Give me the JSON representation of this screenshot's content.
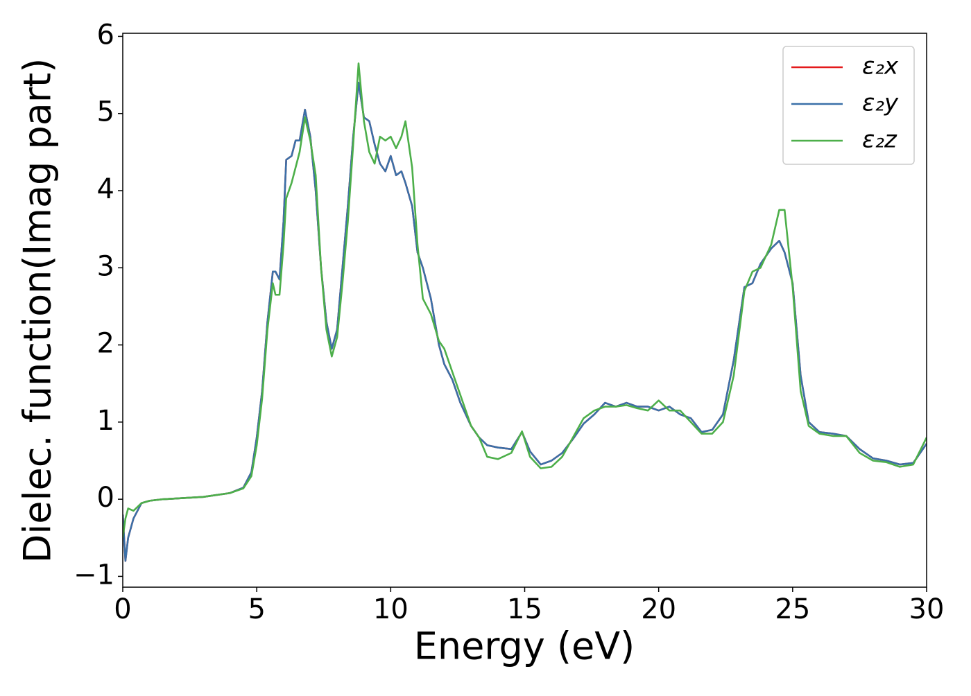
{
  "chart_data": {
    "type": "line",
    "xlabel": "Energy (eV)",
    "ylabel": "Dielec. function(Imag part)",
    "x": [
      0,
      0.1,
      0.2,
      0.4,
      0.7,
      1,
      1.5,
      2,
      3,
      4,
      4.5,
      4.8,
      5,
      5.2,
      5.4,
      5.6,
      5.7,
      5.85,
      6,
      6.1,
      6.3,
      6.45,
      6.6,
      6.8,
      7,
      7.2,
      7.4,
      7.6,
      7.8,
      8,
      8.2,
      8.4,
      8.6,
      8.8,
      9,
      9.2,
      9.4,
      9.6,
      9.8,
      10,
      10.2,
      10.4,
      10.55,
      10.8,
      11,
      11.2,
      11.5,
      11.8,
      12,
      12.3,
      12.6,
      13,
      13.3,
      13.6,
      14,
      14.5,
      14.9,
      15.2,
      15.6,
      16,
      16.4,
      16.8,
      17.2,
      17.6,
      18,
      18.4,
      18.8,
      19.2,
      19.6,
      20,
      20.4,
      20.8,
      21.2,
      21.6,
      22,
      22.4,
      22.8,
      23.2,
      23.5,
      23.8,
      24.2,
      24.5,
      24.7,
      25,
      25.3,
      25.6,
      26,
      26.5,
      27,
      27.5,
      28,
      28.5,
      29,
      29.5,
      30
    ],
    "series": [
      {
        "name": "ε₂x",
        "color": "#e41a1c",
        "values": [
          -0.2,
          -0.8,
          -0.5,
          -0.25,
          -0.05,
          -0.02,
          0,
          0.01,
          0.03,
          0.08,
          0.15,
          0.35,
          0.8,
          1.4,
          2.3,
          2.95,
          2.95,
          2.85,
          3.6,
          4.4,
          4.45,
          4.65,
          4.65,
          5.05,
          4.7,
          4.0,
          3.0,
          2.3,
          1.95,
          2.2,
          3.0,
          3.8,
          4.7,
          5.4,
          4.95,
          4.9,
          4.6,
          4.35,
          4.25,
          4.45,
          4.2,
          4.25,
          4.1,
          3.8,
          3.2,
          3.0,
          2.6,
          2.0,
          1.75,
          1.55,
          1.25,
          0.95,
          0.8,
          0.7,
          0.67,
          0.65,
          0.87,
          0.62,
          0.45,
          0.5,
          0.6,
          0.78,
          0.98,
          1.1,
          1.25,
          1.2,
          1.25,
          1.2,
          1.2,
          1.15,
          1.2,
          1.1,
          1.05,
          0.87,
          0.9,
          1.1,
          1.8,
          2.75,
          2.8,
          3.05,
          3.25,
          3.35,
          3.2,
          2.8,
          1.6,
          1.0,
          0.87,
          0.85,
          0.82,
          0.65,
          0.53,
          0.5,
          0.45,
          0.47,
          0.72
        ]
      },
      {
        "name": "ε₂y",
        "color": "#3a70a8",
        "values": [
          -0.2,
          -0.8,
          -0.5,
          -0.25,
          -0.05,
          -0.02,
          0,
          0.01,
          0.03,
          0.08,
          0.15,
          0.35,
          0.8,
          1.4,
          2.3,
          2.95,
          2.95,
          2.85,
          3.6,
          4.4,
          4.45,
          4.65,
          4.65,
          5.05,
          4.7,
          4.0,
          3.0,
          2.3,
          1.95,
          2.2,
          3.0,
          3.8,
          4.7,
          5.4,
          4.95,
          4.9,
          4.6,
          4.35,
          4.25,
          4.45,
          4.2,
          4.25,
          4.1,
          3.8,
          3.2,
          3.0,
          2.6,
          2.0,
          1.75,
          1.55,
          1.25,
          0.95,
          0.8,
          0.7,
          0.67,
          0.65,
          0.87,
          0.62,
          0.45,
          0.5,
          0.6,
          0.78,
          0.98,
          1.1,
          1.25,
          1.2,
          1.25,
          1.2,
          1.2,
          1.15,
          1.2,
          1.1,
          1.05,
          0.87,
          0.9,
          1.1,
          1.8,
          2.75,
          2.8,
          3.05,
          3.25,
          3.35,
          3.2,
          2.8,
          1.6,
          1.0,
          0.87,
          0.85,
          0.82,
          0.65,
          0.53,
          0.5,
          0.45,
          0.47,
          0.72
        ]
      },
      {
        "name": "ε₂z",
        "color": "#4daf4a",
        "values": [
          -0.5,
          -0.25,
          -0.12,
          -0.15,
          -0.05,
          -0.02,
          0,
          0.01,
          0.03,
          0.08,
          0.14,
          0.3,
          0.7,
          1.3,
          2.2,
          2.8,
          2.65,
          2.65,
          3.3,
          3.9,
          4.1,
          4.3,
          4.5,
          4.95,
          4.65,
          4.2,
          3.0,
          2.2,
          1.85,
          2.1,
          2.8,
          3.6,
          4.6,
          5.65,
          4.9,
          4.5,
          4.35,
          4.7,
          4.65,
          4.7,
          4.55,
          4.7,
          4.9,
          4.3,
          3.3,
          2.6,
          2.4,
          2.05,
          1.95,
          1.65,
          1.35,
          0.95,
          0.8,
          0.55,
          0.52,
          0.6,
          0.88,
          0.55,
          0.4,
          0.42,
          0.55,
          0.8,
          1.05,
          1.15,
          1.2,
          1.2,
          1.22,
          1.18,
          1.15,
          1.28,
          1.15,
          1.15,
          1.0,
          0.85,
          0.85,
          1.0,
          1.6,
          2.7,
          2.95,
          3.0,
          3.3,
          3.75,
          3.75,
          2.75,
          1.4,
          0.95,
          0.85,
          0.82,
          0.82,
          0.6,
          0.5,
          0.48,
          0.42,
          0.45,
          0.8
        ]
      }
    ],
    "xlim": [
      0,
      30
    ],
    "xticks": [
      0,
      5,
      10,
      15,
      20,
      25,
      30
    ],
    "ylim": [
      -1.14,
      6.04
    ],
    "yticks": [
      {
        "value": -1,
        "label": "−1"
      },
      0,
      1,
      2,
      3,
      4,
      5,
      6
    ],
    "grid": false,
    "legend": "upper right"
  }
}
